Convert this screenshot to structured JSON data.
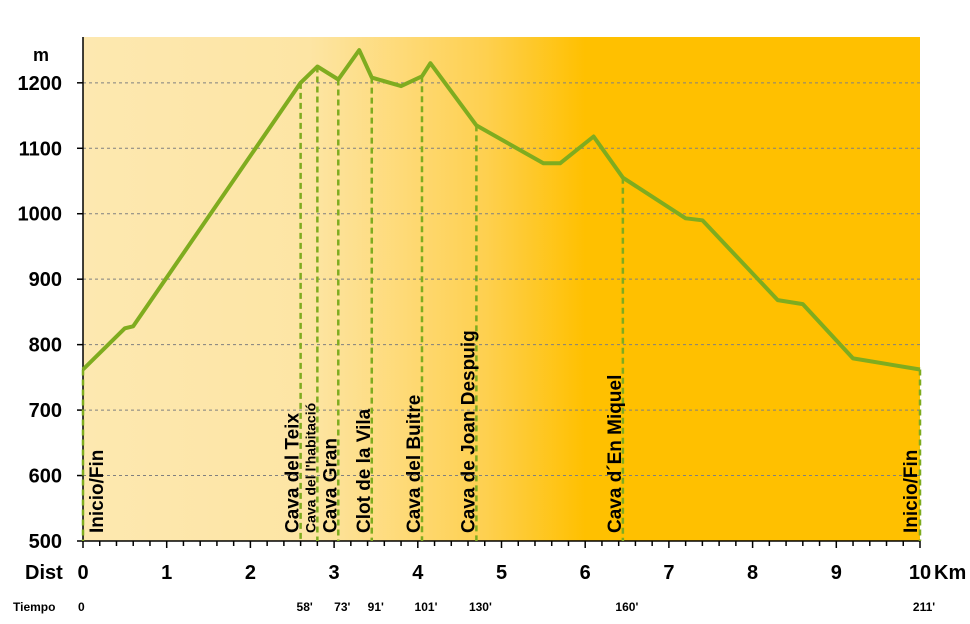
{
  "chart_data": {
    "type": "line",
    "ylabel": "m",
    "xlabel_left": "Dist",
    "xlabel_right": "Km",
    "time_label": "Tiempo",
    "ylim": [
      500,
      1270
    ],
    "xlim": [
      0,
      10
    ],
    "yticks": [
      500,
      600,
      700,
      800,
      900,
      1000,
      1100,
      1200
    ],
    "xticks": [
      0,
      1,
      2,
      3,
      4,
      5,
      6,
      7,
      8,
      9,
      10
    ],
    "grid": true,
    "series": [
      {
        "color": "#7fac1f",
        "points": [
          [
            0,
            762
          ],
          [
            0.5,
            825
          ],
          [
            0.6,
            828
          ],
          [
            2.6,
            1200
          ],
          [
            2.8,
            1225
          ],
          [
            3.05,
            1205
          ],
          [
            3.3,
            1250
          ],
          [
            3.45,
            1208
          ],
          [
            3.8,
            1195
          ],
          [
            4.05,
            1210
          ],
          [
            4.15,
            1230
          ],
          [
            4.7,
            1135
          ],
          [
            5.5,
            1077
          ],
          [
            5.7,
            1077
          ],
          [
            6.1,
            1118
          ],
          [
            6.45,
            1055
          ],
          [
            7.2,
            993
          ],
          [
            7.4,
            990
          ],
          [
            8.3,
            868
          ],
          [
            8.6,
            862
          ],
          [
            9.2,
            779
          ],
          [
            10,
            762
          ]
        ]
      }
    ],
    "waypoints": [
      {
        "label": "Inicio/Fin",
        "x": 0,
        "y": 762,
        "time": "0",
        "size": "large"
      },
      {
        "label": "Cava del Teix",
        "x": 2.6,
        "y": 1200,
        "time": "58'",
        "size": "large"
      },
      {
        "label": "Cava del l'habitació",
        "x": 2.8,
        "y": 1225,
        "time": "",
        "size": "small"
      },
      {
        "label": "Cava Gran",
        "x": 3.05,
        "y": 1205,
        "time": "73'",
        "size": "large"
      },
      {
        "label": "Clot de la Vila",
        "x": 3.45,
        "y": 1208,
        "time": "91'",
        "size": "large"
      },
      {
        "label": "Cava del Buitre",
        "x": 4.05,
        "y": 1210,
        "time": "101'",
        "size": "large"
      },
      {
        "label": "Cava de Joan Despuig",
        "x": 4.7,
        "y": 1135,
        "time": "130'",
        "size": "large"
      },
      {
        "label": "Cava d´En Miquel",
        "x": 6.45,
        "y": 1055,
        "time": "160'",
        "size": "large"
      },
      {
        "label": "Inicio/Fin",
        "x": 10,
        "y": 762,
        "time": "211'",
        "size": "large"
      }
    ],
    "colors": {
      "line": "#7fac1f",
      "bg_light": "#fde7ad",
      "bg_dark": "#ffc000"
    }
  }
}
